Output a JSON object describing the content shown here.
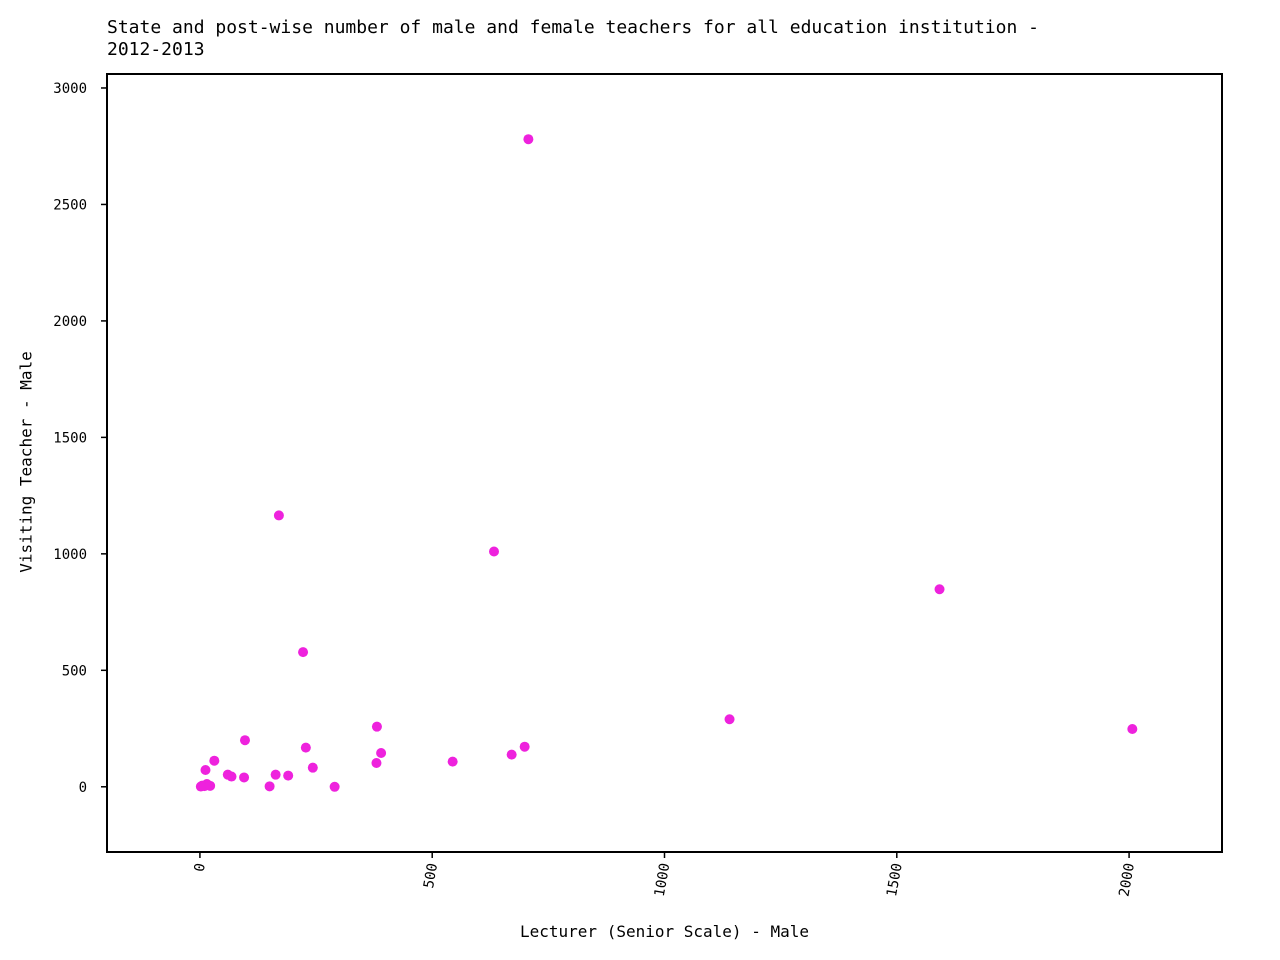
{
  "chart_data": {
    "type": "scatter",
    "title": "State and post-wise number of male and female teachers for all education institution -\n2012-2013",
    "xlabel": "Lecturer (Senior Scale) - Male",
    "ylabel": "Visiting Teacher - Male",
    "xlim": [
      -200,
      2200
    ],
    "ylim": [
      -280,
      3060
    ],
    "xticks": [
      0,
      500,
      1000,
      1500,
      2000
    ],
    "xtick_labels": [
      "0",
      "500",
      "1000",
      "1500",
      "2000"
    ],
    "yticks": [
      0,
      500,
      1000,
      1500,
      2000,
      2500,
      3000
    ],
    "ytick_labels": [
      "0",
      "500",
      "1000",
      "1500",
      "2000",
      "2500",
      "3000"
    ],
    "grid": false,
    "marker_color": "#ee22dd",
    "points": [
      {
        "x": 707,
        "y": 2780
      },
      {
        "x": 170,
        "y": 1165
      },
      {
        "x": 633,
        "y": 1010
      },
      {
        "x": 1592,
        "y": 848
      },
      {
        "x": 222,
        "y": 578
      },
      {
        "x": 1140,
        "y": 290
      },
      {
        "x": 381,
        "y": 258
      },
      {
        "x": 2007,
        "y": 248
      },
      {
        "x": 97,
        "y": 200
      },
      {
        "x": 228,
        "y": 168
      },
      {
        "x": 699,
        "y": 172
      },
      {
        "x": 390,
        "y": 145
      },
      {
        "x": 671,
        "y": 138
      },
      {
        "x": 31,
        "y": 112
      },
      {
        "x": 544,
        "y": 108
      },
      {
        "x": 380,
        "y": 102
      },
      {
        "x": 243,
        "y": 82
      },
      {
        "x": 12,
        "y": 72
      },
      {
        "x": 60,
        "y": 52
      },
      {
        "x": 163,
        "y": 52
      },
      {
        "x": 68,
        "y": 44
      },
      {
        "x": 190,
        "y": 48
      },
      {
        "x": 95,
        "y": 40
      },
      {
        "x": 15,
        "y": 12
      },
      {
        "x": 5,
        "y": 5
      },
      {
        "x": 10,
        "y": 3
      },
      {
        "x": 22,
        "y": 4
      },
      {
        "x": 2,
        "y": 1
      },
      {
        "x": 150,
        "y": 2
      },
      {
        "x": 290,
        "y": 0
      }
    ]
  }
}
